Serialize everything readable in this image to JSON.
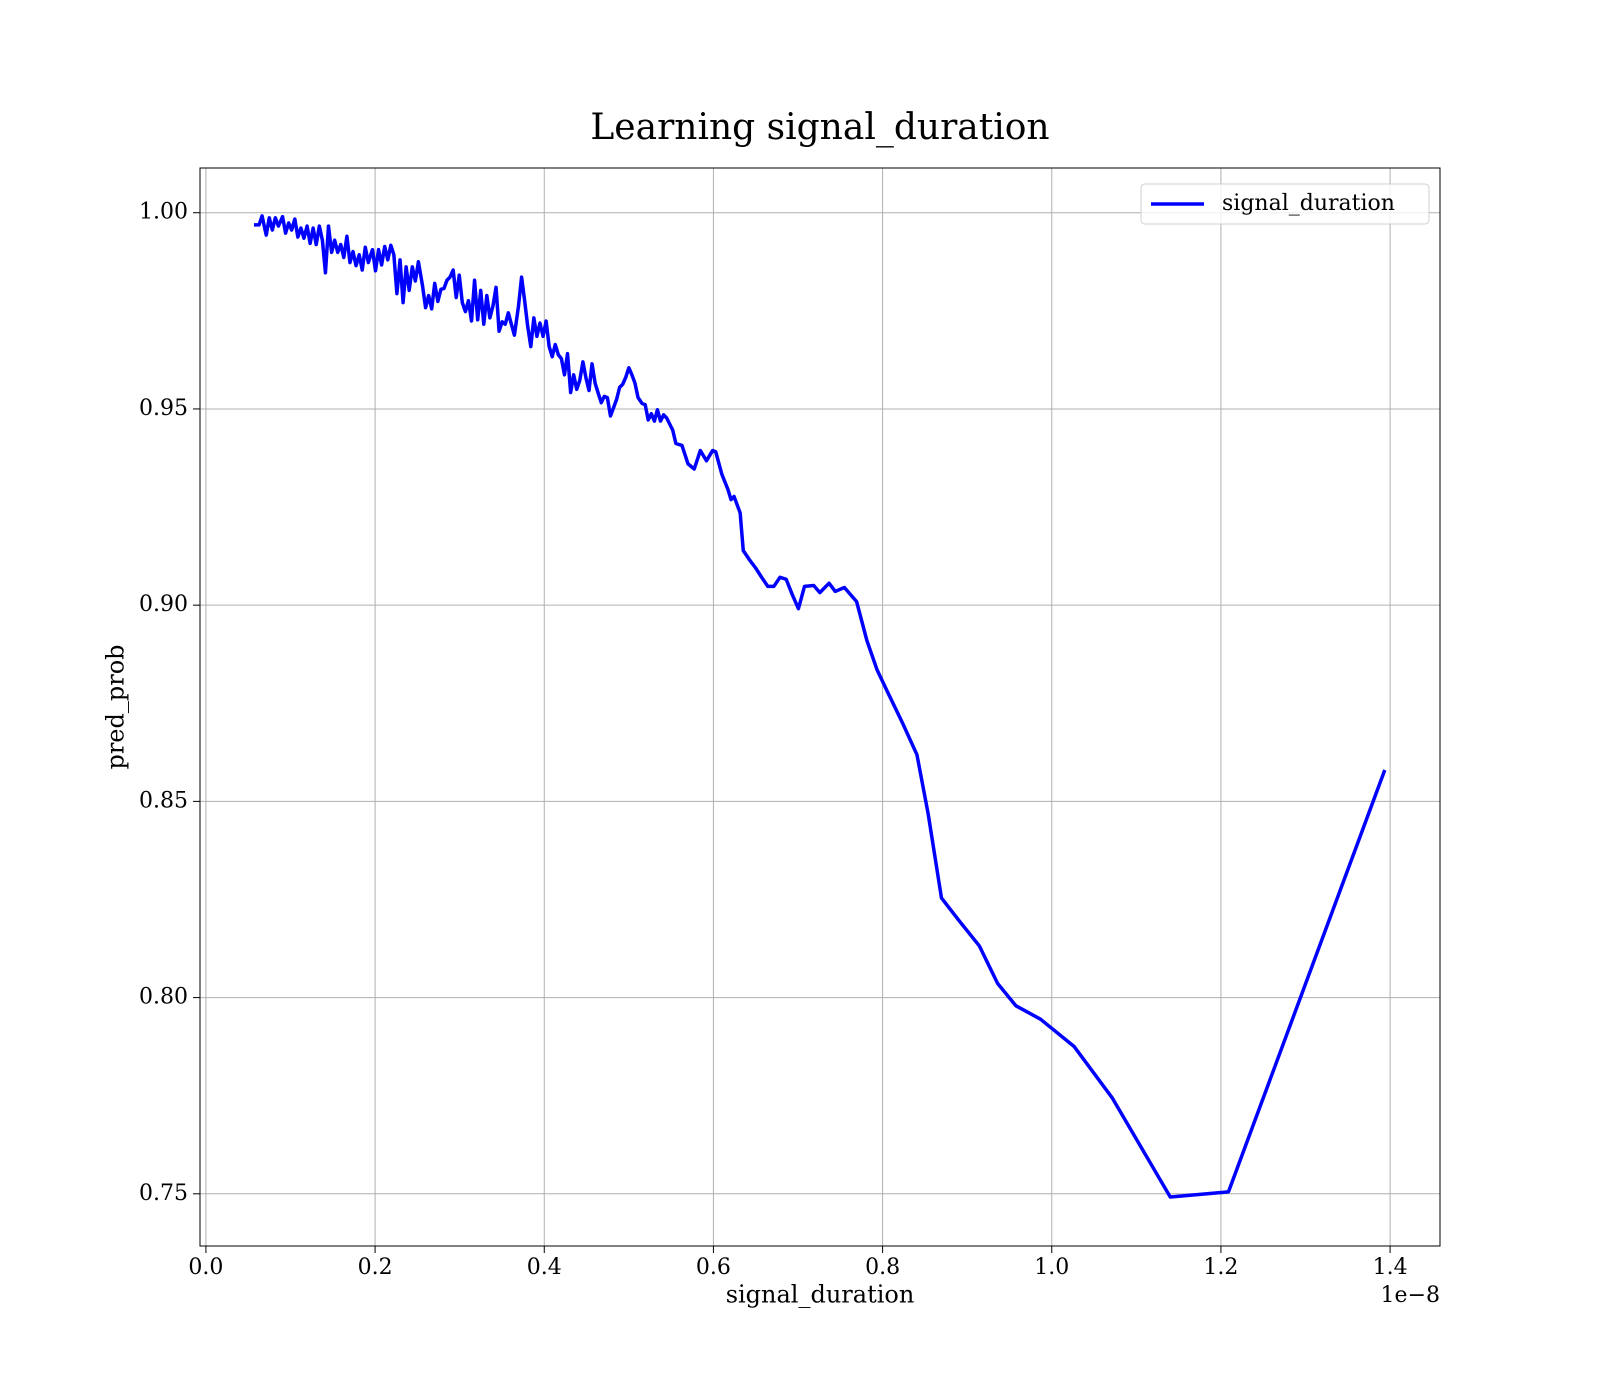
{
  "chart_data": {
    "type": "line",
    "title": "Learning signal_duration",
    "xlabel": "signal_duration",
    "ylabel": "pred_prob",
    "x_offset_label": "1e−8",
    "x": [
      0.0568,
      0.0628,
      0.0664,
      0.0713,
      0.0749,
      0.0785,
      0.0821,
      0.0857,
      0.0906,
      0.0942,
      0.0978,
      0.1014,
      0.1051,
      0.1087,
      0.1123,
      0.1159,
      0.1196,
      0.1232,
      0.1268,
      0.1304,
      0.1341,
      0.1377,
      0.1413,
      0.1449,
      0.1486,
      0.1522,
      0.1558,
      0.1594,
      0.163,
      0.1667,
      0.1703,
      0.1739,
      0.1775,
      0.1812,
      0.1848,
      0.1884,
      0.192,
      0.1969,
      0.2005,
      0.2041,
      0.2077,
      0.2114,
      0.215,
      0.2186,
      0.2222,
      0.2258,
      0.2295,
      0.2331,
      0.2367,
      0.2403,
      0.244,
      0.2476,
      0.2512,
      0.256,
      0.2597,
      0.2633,
      0.2669,
      0.2705,
      0.2742,
      0.2778,
      0.2814,
      0.285,
      0.2886,
      0.2923,
      0.2959,
      0.2995,
      0.3031,
      0.3068,
      0.3104,
      0.314,
      0.3176,
      0.3213,
      0.3249,
      0.3285,
      0.3321,
      0.3357,
      0.3394,
      0.343,
      0.3466,
      0.3502,
      0.3539,
      0.3575,
      0.3611,
      0.3647,
      0.3696,
      0.3732,
      0.3768,
      0.3804,
      0.3841,
      0.3877,
      0.3913,
      0.3949,
      0.3986,
      0.4022,
      0.4058,
      0.4094,
      0.413,
      0.4167,
      0.4203,
      0.4239,
      0.4275,
      0.4312,
      0.4348,
      0.4384,
      0.442,
      0.4457,
      0.4493,
      0.4529,
      0.4565,
      0.4601,
      0.4638,
      0.4674,
      0.471,
      0.4746,
      0.4783,
      0.4819,
      0.4855,
      0.4891,
      0.4928,
      0.4964,
      0.5,
      0.5036,
      0.5072,
      0.5109,
      0.5157,
      0.5193,
      0.5229,
      0.5266,
      0.5302,
      0.5338,
      0.5374,
      0.5411,
      0.5447,
      0.5519,
      0.5556,
      0.5628,
      0.57,
      0.5773,
      0.5845,
      0.5918,
      0.599,
      0.6027,
      0.6099,
      0.6171,
      0.6208,
      0.6244,
      0.6316,
      0.6353,
      0.6425,
      0.6498,
      0.657,
      0.6643,
      0.6715,
      0.6787,
      0.686,
      0.6932,
      0.7005,
      0.7077,
      0.7186,
      0.7258,
      0.7367,
      0.744,
      0.7548,
      0.7693,
      0.7814,
      0.7935,
      0.8056,
      0.8237,
      0.8406,
      0.8539,
      0.8696,
      0.8901,
      0.9143,
      0.936,
      0.9577,
      0.9867,
      1.0266,
      1.0713,
      1.1401,
      1.2089,
      1.3937
    ],
    "series": [
      {
        "name": "signal_duration",
        "color": "#0000ff",
        "values": [
          0.9969,
          0.9969,
          0.9992,
          0.9943,
          0.9987,
          0.9956,
          0.9987,
          0.9966,
          0.999,
          0.9948,
          0.9974,
          0.9956,
          0.9984,
          0.9938,
          0.9961,
          0.9935,
          0.9966,
          0.9922,
          0.9961,
          0.9919,
          0.9966,
          0.993,
          0.9847,
          0.9966,
          0.9899,
          0.993,
          0.9899,
          0.9919,
          0.9886,
          0.994,
          0.9873,
          0.9901,
          0.9865,
          0.9893,
          0.9854,
          0.9912,
          0.9873,
          0.9906,
          0.9852,
          0.9906,
          0.9867,
          0.9914,
          0.988,
          0.9917,
          0.9893,
          0.9794,
          0.988,
          0.9771,
          0.9862,
          0.9802,
          0.9862,
          0.9826,
          0.9875,
          0.9815,
          0.9758,
          0.9789,
          0.9755,
          0.982,
          0.9774,
          0.9805,
          0.9807,
          0.9828,
          0.9836,
          0.9854,
          0.9784,
          0.9841,
          0.9771,
          0.9748,
          0.9776,
          0.9724,
          0.9828,
          0.9727,
          0.9802,
          0.9716,
          0.9789,
          0.9732,
          0.9763,
          0.981,
          0.9698,
          0.9722,
          0.9716,
          0.9745,
          0.9716,
          0.9688,
          0.9763,
          0.9836,
          0.9776,
          0.9711,
          0.9659,
          0.9732,
          0.9685,
          0.9719,
          0.9685,
          0.9724,
          0.9659,
          0.9633,
          0.9664,
          0.9638,
          0.9628,
          0.9587,
          0.9641,
          0.9542,
          0.9587,
          0.955,
          0.9573,
          0.962,
          0.9579,
          0.9547,
          0.9615,
          0.9566,
          0.954,
          0.9516,
          0.9532,
          0.9529,
          0.9482,
          0.9503,
          0.9524,
          0.9555,
          0.9563,
          0.9581,
          0.9605,
          0.9587,
          0.9566,
          0.9529,
          0.9514,
          0.9511,
          0.9472,
          0.9488,
          0.9469,
          0.9498,
          0.9469,
          0.9485,
          0.9477,
          0.9446,
          0.9412,
          0.9407,
          0.936,
          0.9347,
          0.9394,
          0.9368,
          0.9394,
          0.9391,
          0.9334,
          0.9295,
          0.9269,
          0.9277,
          0.9235,
          0.9139,
          0.9116,
          0.9095,
          0.9071,
          0.9048,
          0.9048,
          0.9071,
          0.9066,
          0.9027,
          0.8991,
          0.9048,
          0.905,
          0.9032,
          0.9056,
          0.9035,
          0.9045,
          0.9009,
          0.891,
          0.8835,
          0.878,
          0.8699,
          0.8619,
          0.8468,
          0.8254,
          0.8197,
          0.8132,
          0.8036,
          0.7979,
          0.7945,
          0.7875,
          0.7745,
          0.7492,
          0.7505,
          0.858
        ]
      }
    ],
    "xlim": [
      -0.007,
      1.459
    ],
    "ylim": [
      0.7367,
      1.0114
    ],
    "xticks": [
      {
        "value": 0,
        "label": "0.0"
      },
      0.2,
      0.4,
      0.6,
      0.8,
      {
        "value": 1,
        "label": "1.0"
      },
      1.2,
      1.4
    ],
    "yticks": [
      {
        "value": 0.75,
        "label": "0.75"
      },
      {
        "value": 0.8,
        "label": "0.80"
      },
      {
        "value": 0.85,
        "label": "0.85"
      },
      {
        "value": 0.9,
        "label": "0.90"
      },
      {
        "value": 0.95,
        "label": "0.95"
      },
      {
        "value": 1,
        "label": "1.00"
      }
    ],
    "grid": true,
    "legend": "upper right"
  }
}
